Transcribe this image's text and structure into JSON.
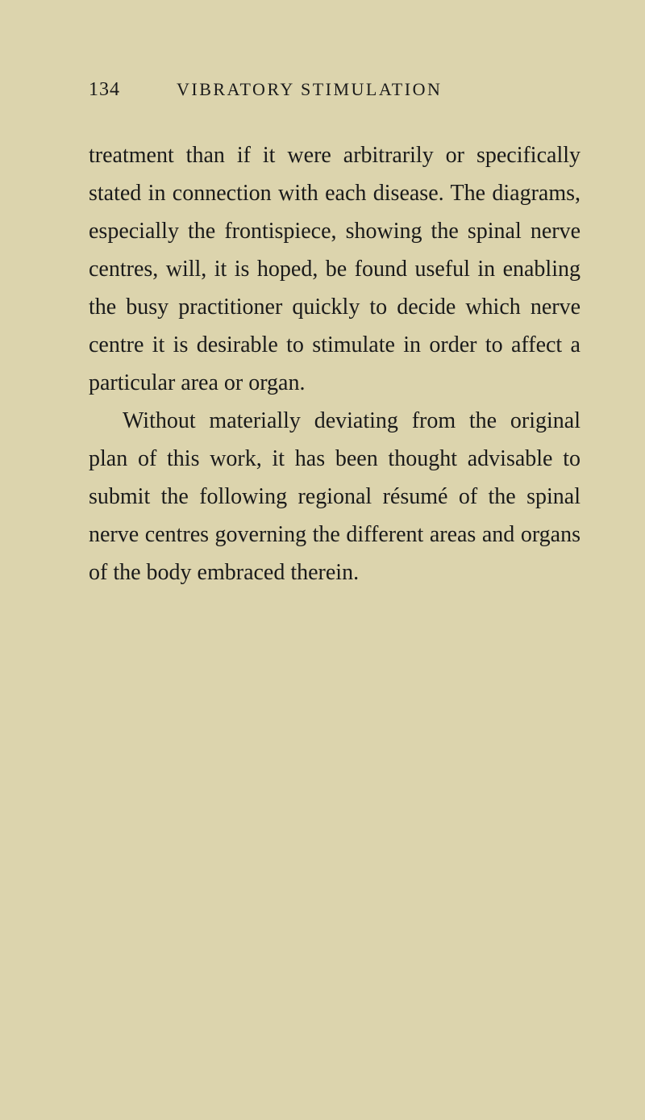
{
  "page_number": "134",
  "chapter_title": "VIBRATORY STIMULATION",
  "paragraphs": [
    "treatment than if it were arbitrarily or specif­ically stated in connection with each disease. The diagrams, especially the frontispiece, show­ing the spinal nerve centres, will, it is hoped, be found useful in enabling the busy practi­tioner quickly to decide which nerve centre it is desirable to stimulate in order to affect a particular area or organ.",
    "Without materially deviating from the original plan of this work, it has been thought advisable to submit the following regional résumé of the spinal nerve centres governing the different areas and organs of the body embraced therein."
  ],
  "colors": {
    "page_bg": "#dcd4ad",
    "text": "#1a1a1a"
  },
  "typography": {
    "header_fontsize": 22,
    "body_fontsize": 28,
    "line_height": 1.68,
    "font_family": "Georgia, Times New Roman, serif"
  }
}
